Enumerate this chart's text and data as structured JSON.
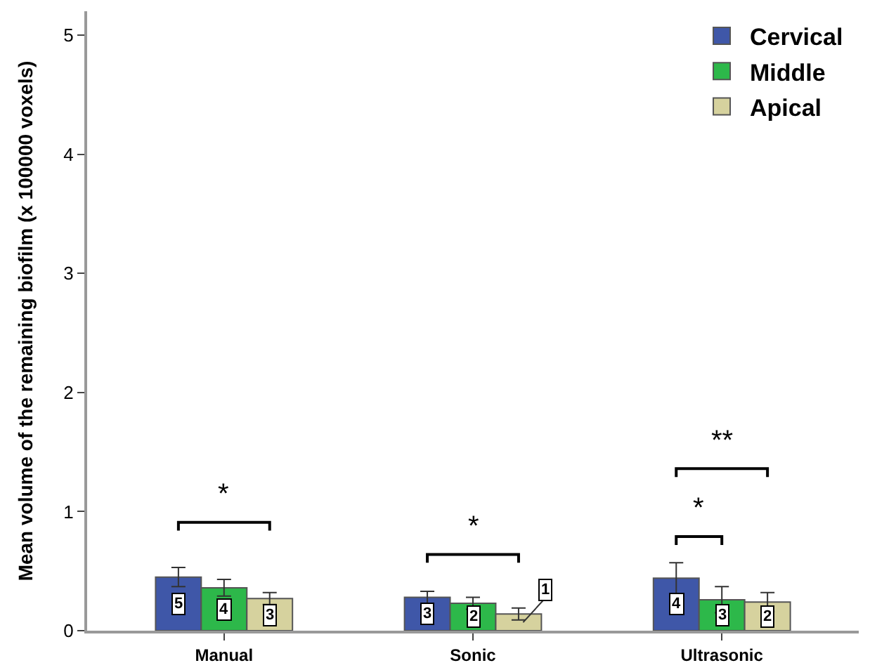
{
  "chart_data": {
    "type": "bar",
    "ylabel": "Mean volume of the remaining biofilm (x 100000 voxels)",
    "categories": [
      "Manual",
      "Sonic",
      "Ultrasonic"
    ],
    "series": [
      {
        "name": "Cervical",
        "color": "#3f57a8",
        "values": [
          0.45,
          0.28,
          0.44
        ],
        "errors": [
          0.08,
          0.05,
          0.13
        ]
      },
      {
        "name": "Middle",
        "color": "#2db84a",
        "values": [
          0.36,
          0.23,
          0.26
        ],
        "errors": [
          0.07,
          0.05,
          0.11
        ]
      },
      {
        "name": "Apical",
        "color": "#d6d29e",
        "values": [
          0.27,
          0.14,
          0.24
        ],
        "errors": [
          0.05,
          0.05,
          0.08
        ]
      }
    ],
    "ylim": [
      0,
      5.2
    ],
    "yticks": [
      0,
      1,
      2,
      3,
      4,
      5
    ],
    "grid": false,
    "legend": "top right",
    "annotations": [
      "*",
      "*",
      "*",
      "**",
      "5",
      "4",
      "3",
      "3",
      "2",
      "1",
      "4",
      "3",
      "2"
    ]
  }
}
